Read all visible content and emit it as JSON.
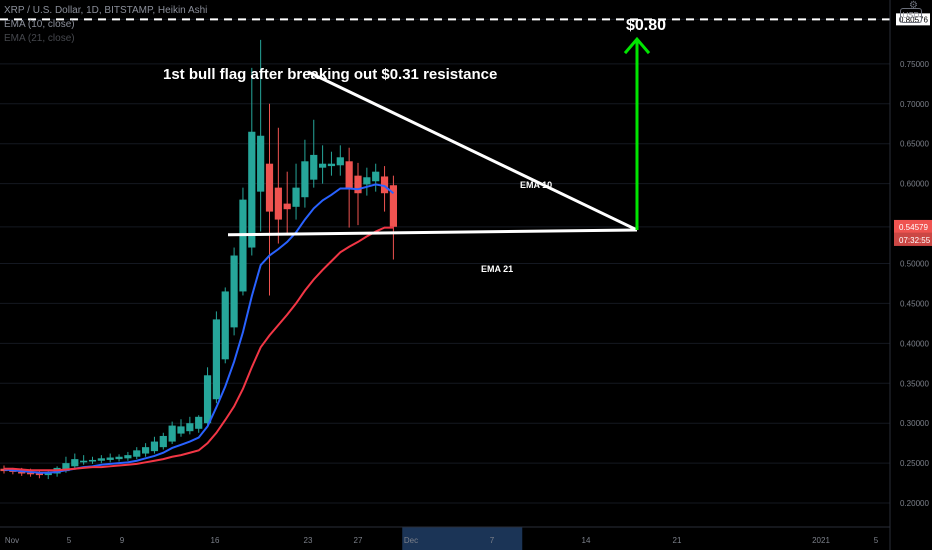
{
  "header": {
    "symbol_line": "XRP / U.S. Dollar, 1D, BITSTAMP, Heikin Ashi",
    "ema10_label": "EMA (10, close)",
    "ema21_label": "EMA (21, close)"
  },
  "price_scale": {
    "currency": "USD",
    "ticks": [
      "0.80576",
      "0.75000",
      "0.70000",
      "0.65000",
      "0.60000",
      "0.54579",
      "0.50000",
      "0.45000",
      "0.40000",
      "0.35000",
      "0.30000",
      "0.25000",
      "0.20000"
    ],
    "current_price": "0.54579",
    "countdown": "07:32:55",
    "target_line": "0.80576"
  },
  "time_scale": {
    "ticks": [
      "Nov",
      "5",
      "9",
      "16",
      "23",
      "27",
      "Dec",
      "7",
      "14",
      "21",
      "2021",
      "5"
    ]
  },
  "colors": {
    "up": "#26a69a",
    "down": "#ef5350",
    "ema10": "#2962ff",
    "ema21": "#f23645",
    "target_arrow": "#00e600",
    "pattern_lines": "#ffffff",
    "highlight": "#1e3a5f"
  },
  "chart_data": {
    "type": "candlestick",
    "title": "XRP / U.S. Dollar, 1D, BITSTAMP, Heikin Ashi",
    "ylim": [
      0.17,
      0.83
    ],
    "annotations": {
      "headline": "1st bull flag after breaking out $0.31 resistance",
      "target_label": "$0.80",
      "ema10_tag": "EMA 10",
      "ema21_tag": "EMA 21"
    },
    "candles": [
      {
        "o": 0.243,
        "h": 0.247,
        "l": 0.237,
        "c": 0.24
      },
      {
        "o": 0.241,
        "h": 0.244,
        "l": 0.236,
        "c": 0.239
      },
      {
        "o": 0.239,
        "h": 0.244,
        "l": 0.234,
        "c": 0.237
      },
      {
        "o": 0.238,
        "h": 0.243,
        "l": 0.233,
        "c": 0.236
      },
      {
        "o": 0.237,
        "h": 0.242,
        "l": 0.231,
        "c": 0.235
      },
      {
        "o": 0.235,
        "h": 0.241,
        "l": 0.23,
        "c": 0.239
      },
      {
        "o": 0.237,
        "h": 0.246,
        "l": 0.233,
        "c": 0.244
      },
      {
        "o": 0.24,
        "h": 0.258,
        "l": 0.238,
        "c": 0.25
      },
      {
        "o": 0.246,
        "h": 0.262,
        "l": 0.244,
        "c": 0.255
      },
      {
        "o": 0.251,
        "h": 0.26,
        "l": 0.248,
        "c": 0.253
      },
      {
        "o": 0.252,
        "h": 0.258,
        "l": 0.249,
        "c": 0.254
      },
      {
        "o": 0.253,
        "h": 0.26,
        "l": 0.25,
        "c": 0.256
      },
      {
        "o": 0.254,
        "h": 0.262,
        "l": 0.251,
        "c": 0.257
      },
      {
        "o": 0.255,
        "h": 0.261,
        "l": 0.252,
        "c": 0.258
      },
      {
        "o": 0.256,
        "h": 0.264,
        "l": 0.253,
        "c": 0.26
      },
      {
        "o": 0.258,
        "h": 0.27,
        "l": 0.255,
        "c": 0.266
      },
      {
        "o": 0.262,
        "h": 0.275,
        "l": 0.258,
        "c": 0.27
      },
      {
        "o": 0.265,
        "h": 0.283,
        "l": 0.262,
        "c": 0.277
      },
      {
        "o": 0.27,
        "h": 0.288,
        "l": 0.267,
        "c": 0.284
      },
      {
        "o": 0.277,
        "h": 0.302,
        "l": 0.274,
        "c": 0.297
      },
      {
        "o": 0.287,
        "h": 0.305,
        "l": 0.283,
        "c": 0.296
      },
      {
        "o": 0.29,
        "h": 0.308,
        "l": 0.286,
        "c": 0.3
      },
      {
        "o": 0.293,
        "h": 0.31,
        "l": 0.288,
        "c": 0.308
      },
      {
        "o": 0.3,
        "h": 0.37,
        "l": 0.298,
        "c": 0.36
      },
      {
        "o": 0.33,
        "h": 0.44,
        "l": 0.325,
        "c": 0.43
      },
      {
        "o": 0.38,
        "h": 0.47,
        "l": 0.375,
        "c": 0.465
      },
      {
        "o": 0.42,
        "h": 0.52,
        "l": 0.41,
        "c": 0.51
      },
      {
        "o": 0.465,
        "h": 0.595,
        "l": 0.46,
        "c": 0.58
      },
      {
        "o": 0.52,
        "h": 0.745,
        "l": 0.51,
        "c": 0.665
      },
      {
        "o": 0.59,
        "h": 0.78,
        "l": 0.54,
        "c": 0.66
      },
      {
        "o": 0.625,
        "h": 0.7,
        "l": 0.46,
        "c": 0.565
      },
      {
        "o": 0.595,
        "h": 0.67,
        "l": 0.525,
        "c": 0.555
      },
      {
        "o": 0.575,
        "h": 0.615,
        "l": 0.535,
        "c": 0.568
      },
      {
        "o": 0.571,
        "h": 0.625,
        "l": 0.555,
        "c": 0.595
      },
      {
        "o": 0.583,
        "h": 0.655,
        "l": 0.57,
        "c": 0.628
      },
      {
        "o": 0.605,
        "h": 0.68,
        "l": 0.595,
        "c": 0.636
      },
      {
        "o": 0.62,
        "h": 0.648,
        "l": 0.6,
        "c": 0.625
      },
      {
        "o": 0.622,
        "h": 0.64,
        "l": 0.61,
        "c": 0.625
      },
      {
        "o": 0.623,
        "h": 0.648,
        "l": 0.61,
        "c": 0.633
      },
      {
        "o": 0.628,
        "h": 0.645,
        "l": 0.545,
        "c": 0.593
      },
      {
        "o": 0.61,
        "h": 0.626,
        "l": 0.548,
        "c": 0.588
      },
      {
        "o": 0.599,
        "h": 0.62,
        "l": 0.585,
        "c": 0.608
      },
      {
        "o": 0.603,
        "h": 0.625,
        "l": 0.59,
        "c": 0.615
      },
      {
        "o": 0.609,
        "h": 0.622,
        "l": 0.565,
        "c": 0.588
      },
      {
        "o": 0.598,
        "h": 0.61,
        "l": 0.505,
        "c": 0.546
      }
    ],
    "ema10": [
      0.242,
      0.241,
      0.24,
      0.239,
      0.238,
      0.238,
      0.239,
      0.241,
      0.243,
      0.245,
      0.246,
      0.248,
      0.249,
      0.25,
      0.251,
      0.253,
      0.256,
      0.259,
      0.263,
      0.269,
      0.273,
      0.277,
      0.282,
      0.296,
      0.32,
      0.346,
      0.377,
      0.414,
      0.459,
      0.498,
      0.51,
      0.518,
      0.527,
      0.539,
      0.555,
      0.569,
      0.579,
      0.586,
      0.594,
      0.594,
      0.593,
      0.596,
      0.599,
      0.597,
      0.588
    ],
    "ema21": [
      0.243,
      0.243,
      0.242,
      0.241,
      0.241,
      0.241,
      0.241,
      0.242,
      0.243,
      0.244,
      0.245,
      0.245,
      0.246,
      0.247,
      0.248,
      0.249,
      0.251,
      0.253,
      0.255,
      0.258,
      0.26,
      0.263,
      0.266,
      0.275,
      0.288,
      0.304,
      0.321,
      0.343,
      0.37,
      0.395,
      0.41,
      0.423,
      0.436,
      0.45,
      0.466,
      0.48,
      0.492,
      0.503,
      0.514,
      0.521,
      0.527,
      0.534,
      0.54,
      0.545,
      0.545
    ]
  }
}
